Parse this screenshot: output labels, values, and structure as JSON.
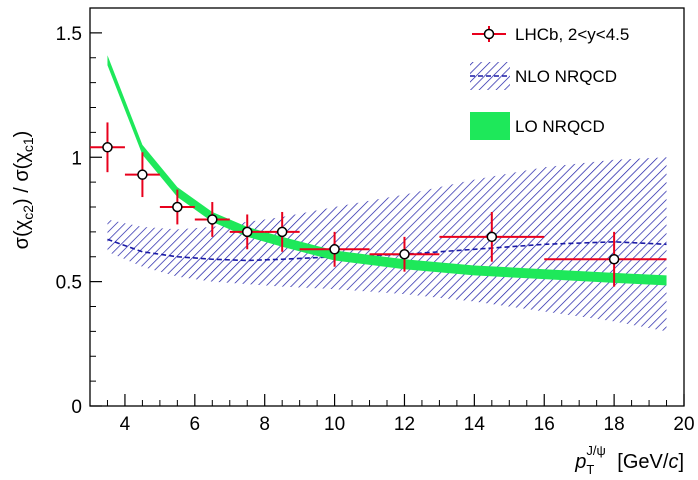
{
  "chart_data": {
    "type": "scatter",
    "xlim": [
      3,
      20
    ],
    "ylim": [
      0,
      1.6
    ],
    "x_ticks": [
      4,
      6,
      8,
      10,
      12,
      14,
      16,
      18,
      20
    ],
    "y_ticks": [
      0,
      0.5,
      1,
      1.5
    ],
    "x_tick_labels": [
      "4",
      "6",
      "8",
      "10",
      "12",
      "14",
      "16",
      "18",
      "20"
    ],
    "y_tick_labels": [
      "0",
      "0.5",
      "1",
      "1.5"
    ],
    "ylabel": "σ(χc2) / σ(χc1)",
    "xlabel": "pTJ/ψ [GeV/c]",
    "grid": false,
    "legend_position": "top-right",
    "legend": {
      "data": "LHCb, 2<y<4.5",
      "nlo": "NLO NRQCD",
      "lo": "LO NRQCD"
    },
    "colors": {
      "data": "#e8001c",
      "nlo": "#1a1aa6",
      "lo": "#1ee85a"
    },
    "series": [
      {
        "name": "LHCb, 2<y<4.5",
        "kind": "points",
        "x": [
          3.5,
          4.5,
          5.5,
          6.5,
          7.5,
          8.5,
          10,
          12,
          14.5,
          18
        ],
        "y": [
          1.04,
          0.93,
          0.8,
          0.75,
          0.7,
          0.7,
          0.63,
          0.61,
          0.68,
          0.59
        ],
        "x_err_low": [
          0.5,
          0.5,
          0.5,
          0.5,
          0.5,
          0.5,
          1.0,
          1.0,
          1.5,
          2.0
        ],
        "x_err_high": [
          0.5,
          0.5,
          0.5,
          0.5,
          0.5,
          0.5,
          1.0,
          1.0,
          1.5,
          1.5
        ],
        "y_err": [
          0.1,
          0.09,
          0.07,
          0.07,
          0.07,
          0.08,
          0.07,
          0.07,
          0.1,
          0.11
        ]
      },
      {
        "name": "NLO NRQCD",
        "kind": "band",
        "x": [
          3.5,
          4.5,
          5.5,
          6.5,
          7.5,
          8.5,
          10,
          12,
          14,
          16,
          18,
          19.5
        ],
        "central": [
          0.67,
          0.62,
          0.6,
          0.59,
          0.585,
          0.59,
          0.6,
          0.61,
          0.63,
          0.65,
          0.66,
          0.65
        ],
        "low": [
          0.62,
          0.56,
          0.52,
          0.5,
          0.49,
          0.48,
          0.47,
          0.45,
          0.42,
          0.38,
          0.34,
          0.3
        ],
        "high": [
          0.75,
          0.72,
          0.71,
          0.72,
          0.74,
          0.76,
          0.8,
          0.85,
          0.91,
          0.96,
          0.99,
          1.0
        ]
      },
      {
        "name": "LO NRQCD",
        "kind": "band",
        "x": [
          3.5,
          4.5,
          5.5,
          6.5,
          7.5,
          8.5,
          10,
          12,
          14,
          16,
          18,
          19.5
        ],
        "low": [
          1.37,
          1.01,
          0.84,
          0.74,
          0.68,
          0.64,
          0.585,
          0.55,
          0.525,
          0.51,
          0.495,
          0.485
        ],
        "high": [
          1.41,
          1.05,
          0.88,
          0.78,
          0.72,
          0.68,
          0.625,
          0.59,
          0.565,
          0.55,
          0.535,
          0.525
        ]
      }
    ]
  }
}
